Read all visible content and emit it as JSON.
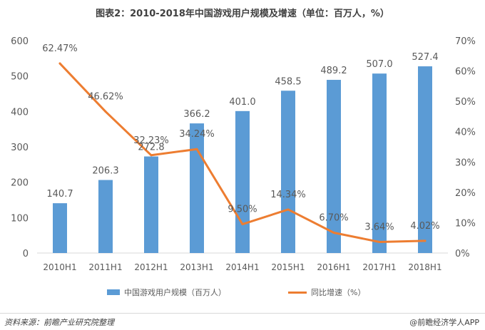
{
  "title": "图表2：2010-2018年中国游戏用户规模及增速（单位：百万人，%）",
  "footer": {
    "source": "资料来源：前瞻产业研究院整理",
    "brand": "@前瞻经济学人APP"
  },
  "colors": {
    "bar": "#5b9bd5",
    "line": "#ed7d31",
    "grid": "#d9d9d9",
    "text": "#595959"
  },
  "chart_data": {
    "type": "bar",
    "title": "图表2：2010-2018年中国游戏用户规模及增速（单位：百万人，%）",
    "categories": [
      "2010H1",
      "2011H1",
      "2012H1",
      "2013H1",
      "2014H1",
      "2015H1",
      "2016H1",
      "2017H1",
      "2018H1"
    ],
    "series": [
      {
        "name": "中国游戏用户规模（百万人）",
        "type": "bar",
        "axis": "left",
        "values": [
          140.7,
          206.3,
          272.8,
          366.2,
          401.0,
          458.5,
          489.2,
          507.0,
          527.4
        ],
        "labels": [
          "140.7",
          "206.3",
          "272.8",
          "366.2",
          "401.0",
          "458.5",
          "489.2",
          "507.0",
          "527.4"
        ]
      },
      {
        "name": "同比增速（%）",
        "type": "line",
        "axis": "right",
        "values": [
          62.47,
          46.62,
          32.23,
          34.24,
          9.5,
          14.34,
          6.7,
          3.64,
          4.02
        ],
        "labels": [
          "62.47%",
          "46.62%",
          "32.23%",
          "34.24%",
          "9.50%",
          "14.34%",
          "6.70%",
          "3.64%",
          "4.02%"
        ]
      }
    ],
    "ylim_left": [
      0,
      600
    ],
    "ylim_right": [
      0,
      70
    ],
    "yticks_left": [
      "0",
      "100",
      "200",
      "300",
      "400",
      "500",
      "600"
    ],
    "yticks_right": [
      "0%",
      "10%",
      "20%",
      "30%",
      "40%",
      "50%",
      "60%",
      "70%"
    ],
    "grid": false,
    "legend": "bottom"
  }
}
